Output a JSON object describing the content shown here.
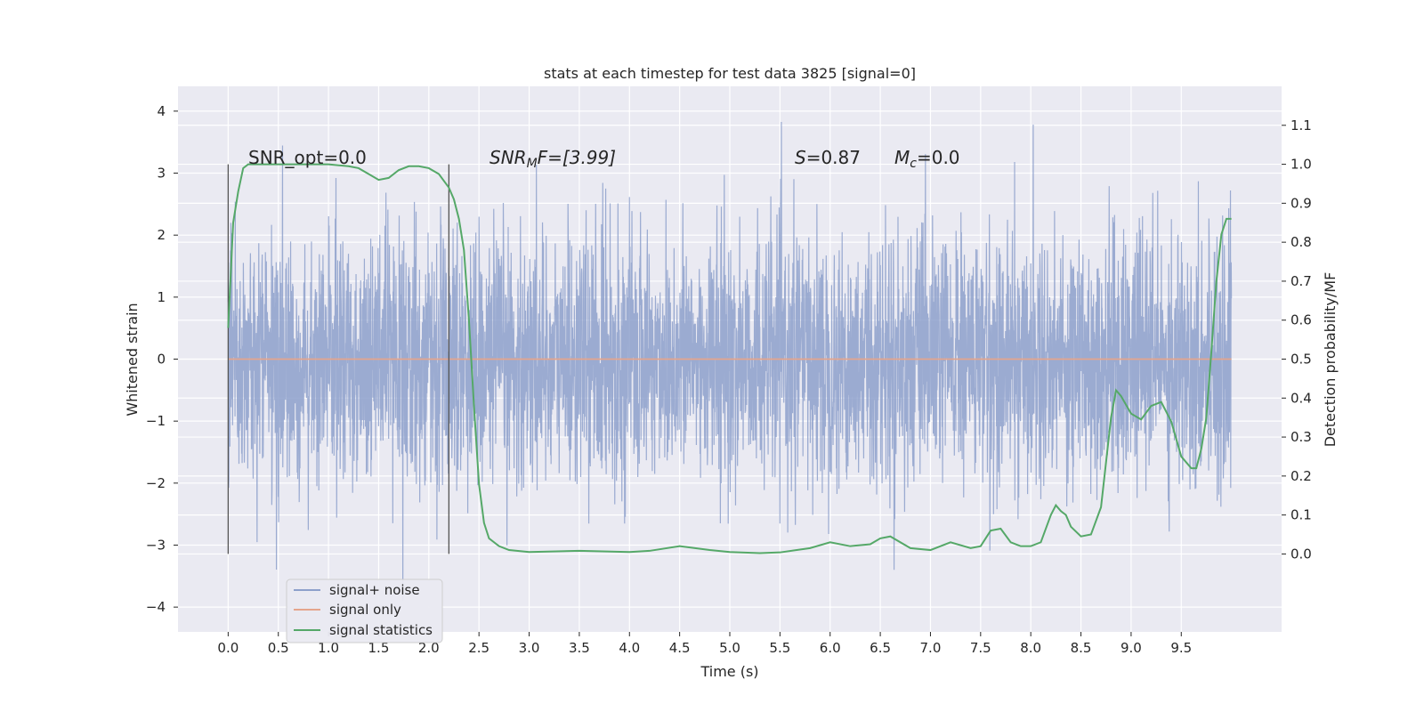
{
  "chart_data": {
    "type": "line",
    "title": "stats at each timestep for test data 3825 [signal=0]",
    "xlabel": "Time (s)",
    "ylabel_left": "Whitened strain",
    "ylabel_right": "Detection probability/MF",
    "xlim": [
      -0.5,
      10.5
    ],
    "ylim_left": [
      -4.4,
      4.4
    ],
    "ylim_right": [
      -0.2,
      1.2
    ],
    "x_ticks": [
      0.0,
      0.5,
      1.0,
      1.5,
      2.0,
      2.5,
      3.0,
      3.5,
      4.0,
      4.5,
      5.0,
      5.5,
      6.0,
      6.5,
      7.0,
      7.5,
      8.0,
      8.5,
      9.0,
      9.5
    ],
    "x_tick_labels": [
      "0.0",
      "0.5",
      "1.0",
      "1.5",
      "2.0",
      "2.5",
      "3.0",
      "3.5",
      "4.0",
      "4.5",
      "5.0",
      "5.5",
      "6.0",
      "6.5",
      "7.0",
      "7.5",
      "8.0",
      "8.5",
      "9.0",
      "9.5"
    ],
    "y_left_ticks": [
      4,
      3,
      2,
      1,
      0,
      -1,
      -2,
      -3,
      -4
    ],
    "y_left_tick_labels": [
      "4",
      "3",
      "2",
      "1",
      "0",
      "−1",
      "−2",
      "−3",
      "−4"
    ],
    "y_right_ticks": [
      1.1,
      1.0,
      0.9,
      0.8,
      0.7,
      0.6,
      0.5,
      0.4,
      0.3,
      0.2,
      0.1,
      0.0
    ],
    "y_right_tick_labels": [
      "1.1",
      "1.0",
      "0.9",
      "0.8",
      "0.7",
      "0.6",
      "0.5",
      "0.4",
      "0.3",
      "0.2",
      "0.1",
      "0.0"
    ],
    "grid": true,
    "legend_placement": "lower-left",
    "vertical_markers": [
      0.0,
      2.2
    ],
    "annotations": {
      "snr_opt": "SNR_opt=0.0",
      "snr_mf_base": "SNR",
      "snr_mf_sub": "M",
      "snr_mf_tail": "F=[3.99]",
      "s_stat_sym": "S",
      "s_stat_val": "=0.87",
      "mc_sym": "M",
      "mc_sub": "c",
      "mc_val": "=0.0"
    },
    "series": [
      {
        "name": "signal+ noise",
        "axis": "left",
        "color": "#8da0cb",
        "description_range": [
          -3.9,
          4.05
        ],
        "x_range": [
          0.0,
          10.0
        ],
        "noise_std": 1.0
      },
      {
        "name": "signal only",
        "axis": "left",
        "color": "#e5a58c",
        "x": [
          0.0,
          10.0
        ],
        "y": [
          0.0,
          0.0
        ]
      },
      {
        "name": "signal statistics",
        "axis": "right",
        "color": "#55a868",
        "x": [
          0.0,
          0.05,
          0.1,
          0.15,
          0.2,
          0.3,
          0.5,
          0.8,
          1.0,
          1.2,
          1.3,
          1.4,
          1.5,
          1.6,
          1.7,
          1.8,
          1.9,
          2.0,
          2.1,
          2.2,
          2.25,
          2.3,
          2.35,
          2.4,
          2.45,
          2.5,
          2.55,
          2.6,
          2.7,
          2.8,
          3.0,
          3.5,
          4.0,
          4.2,
          4.5,
          4.8,
          5.0,
          5.3,
          5.5,
          5.8,
          6.0,
          6.2,
          6.4,
          6.5,
          6.6,
          6.8,
          7.0,
          7.2,
          7.4,
          7.5,
          7.6,
          7.7,
          7.8,
          7.9,
          8.0,
          8.1,
          8.2,
          8.25,
          8.3,
          8.35,
          8.4,
          8.5,
          8.6,
          8.7,
          8.8,
          8.85,
          8.9,
          9.0,
          9.1,
          9.2,
          9.3,
          9.4,
          9.5,
          9.6,
          9.65,
          9.7,
          9.75,
          9.8,
          9.85,
          9.9,
          9.95,
          10.0
        ],
        "y": [
          0.58,
          0.85,
          0.93,
          0.99,
          1.0,
          1.0,
          1.0,
          1.0,
          1.0,
          0.995,
          0.99,
          0.975,
          0.96,
          0.965,
          0.985,
          0.995,
          0.995,
          0.99,
          0.975,
          0.94,
          0.91,
          0.86,
          0.78,
          0.6,
          0.38,
          0.18,
          0.08,
          0.04,
          0.02,
          0.01,
          0.005,
          0.008,
          0.005,
          0.008,
          0.02,
          0.01,
          0.005,
          0.002,
          0.004,
          0.015,
          0.03,
          0.02,
          0.025,
          0.04,
          0.045,
          0.015,
          0.01,
          0.03,
          0.015,
          0.02,
          0.06,
          0.065,
          0.03,
          0.02,
          0.02,
          0.03,
          0.1,
          0.125,
          0.11,
          0.1,
          0.07,
          0.045,
          0.05,
          0.12,
          0.35,
          0.42,
          0.405,
          0.36,
          0.345,
          0.38,
          0.39,
          0.34,
          0.25,
          0.22,
          0.22,
          0.27,
          0.35,
          0.52,
          0.7,
          0.82,
          0.86,
          0.86
        ]
      }
    ]
  }
}
